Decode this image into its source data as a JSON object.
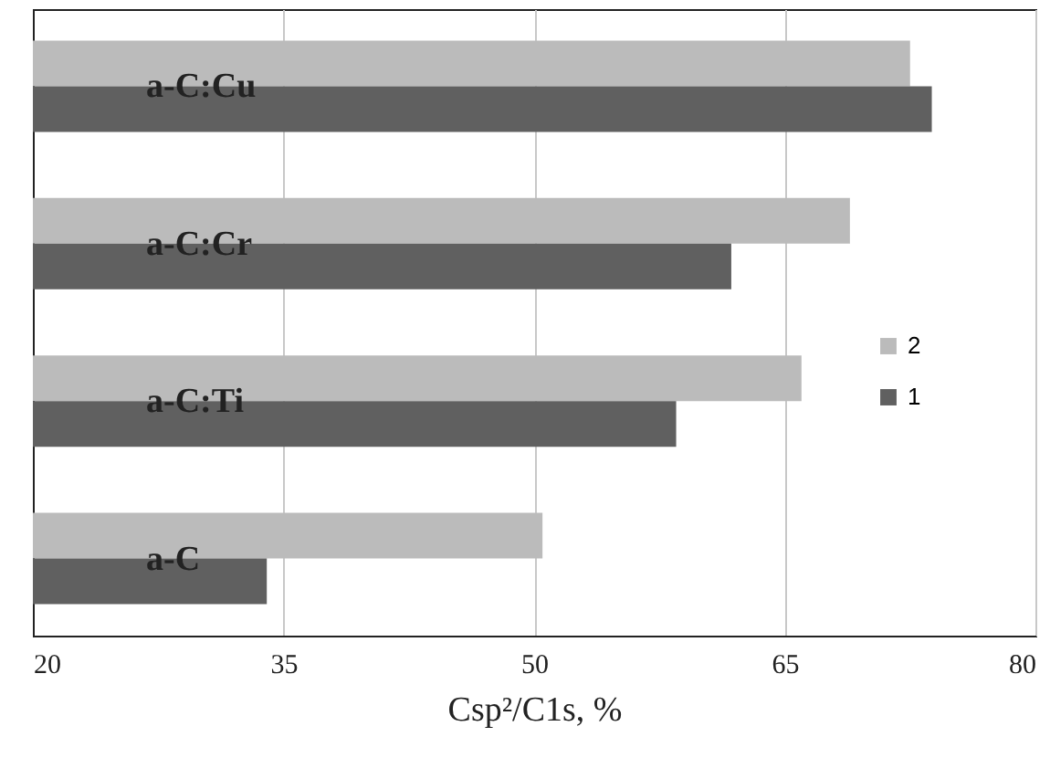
{
  "chart_data": {
    "type": "bar",
    "orientation": "horizontal",
    "xlabel": "Csp²/C1s, %",
    "categories": [
      "a-C:Cu",
      "a-C:Cr",
      "a-C:Ti",
      "a-C"
    ],
    "series": [
      {
        "name": "2",
        "color": "#bbbbbb",
        "values": [
          72.5,
          68.9,
          66.0,
          50.5
        ]
      },
      {
        "name": "1",
        "color": "#606060",
        "values": [
          73.8,
          61.8,
          58.5,
          34.0
        ]
      }
    ],
    "xlim": [
      20,
      80
    ],
    "xticks": [
      20,
      35,
      50,
      65,
      80
    ],
    "grid": "x",
    "legend": "right"
  }
}
